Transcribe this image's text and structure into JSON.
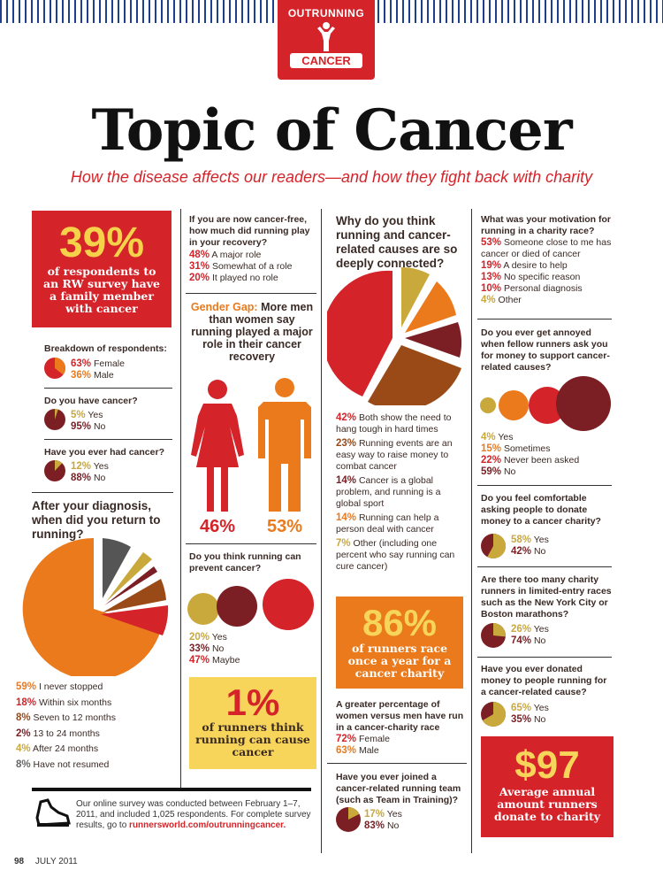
{
  "header": {
    "badge_top": "OUTRUNNING",
    "badge_bottom": "CANCER",
    "title": "Topic of Cancer",
    "subtitle": "How the disease affects our readers—and how they fight back with charity"
  },
  "colors": {
    "red": "#d42329",
    "orange": "#ea7a1c",
    "maroon": "#7b1f25",
    "gold": "#c9a83c",
    "brown": "#9a4a17",
    "grey": "#666666",
    "stripe": "#1e3f8e"
  },
  "col1": {
    "family_box": {
      "value": "39%",
      "text": "of respondents to an RW survey have a family member with cancer"
    },
    "breakdown": {
      "question": "Breakdown of respondents:",
      "rows": [
        {
          "pct": "63%",
          "label": "Female"
        },
        {
          "pct": "36%",
          "label": "Male"
        }
      ]
    },
    "have_cancer": {
      "question": "Do you have cancer?",
      "rows": [
        {
          "pct": "5%",
          "label": "Yes"
        },
        {
          "pct": "95%",
          "label": "No"
        }
      ]
    },
    "ever_had": {
      "question": "Have you ever had cancer?",
      "rows": [
        {
          "pct": "12%",
          "label": "Yes"
        },
        {
          "pct": "88%",
          "label": "No"
        }
      ]
    },
    "return": {
      "question": "After your diagnosis, when did you return to running?",
      "rows": [
        {
          "pct": "59%",
          "label": "I never stopped"
        },
        {
          "pct": "18%",
          "label": "Within six months"
        },
        {
          "pct": "8%",
          "label": "Seven to 12 months"
        },
        {
          "pct": "2%",
          "label": "13 to 24 months"
        },
        {
          "pct": "4%",
          "label": "After 24 months"
        },
        {
          "pct": "8%",
          "label": "Have not resumed"
        }
      ]
    }
  },
  "col2": {
    "role": {
      "question": "If you are now cancer-free, how much did running play in your recovery?",
      "rows": [
        {
          "pct": "48%",
          "label": "A major role"
        },
        {
          "pct": "31%",
          "label": "Somewhat of a role"
        },
        {
          "pct": "20%",
          "label": "It played no role"
        }
      ]
    },
    "gender_gap": {
      "label": "Gender Gap:",
      "text": "More men than women say running played a major role in their cancer recovery",
      "female": "46%",
      "male": "53%"
    },
    "prevent": {
      "question": "Do you think running can prevent cancer?",
      "rows": [
        {
          "pct": "20%",
          "label": "Yes"
        },
        {
          "pct": "33%",
          "label": "No"
        },
        {
          "pct": "47%",
          "label": "Maybe"
        }
      ]
    },
    "cause_box": {
      "value": "1%",
      "text": "of runners think running can cause cancer"
    }
  },
  "col3": {
    "connected": {
      "question": "Why do you think running and cancer-related causes are so deeply connected?",
      "rows": [
        {
          "pct": "42%",
          "label": "Both show the need to hang tough in hard times"
        },
        {
          "pct": "23%",
          "label": "Running events are an easy way to raise money to combat cancer"
        },
        {
          "pct": "14%",
          "label": "Cancer is a global problem, and running is a global sport"
        },
        {
          "pct": "14%",
          "label": "Running can help a person deal with cancer"
        },
        {
          "pct": "7%",
          "label": "Other (including one percent who say running can cure cancer)"
        }
      ]
    },
    "race_box": {
      "value": "86%",
      "text": "of runners race once a year for a cancer charity"
    },
    "gender_race": {
      "question": "A greater percentage of women versus men have run in a cancer-charity race",
      "rows": [
        {
          "pct": "72%",
          "label": "Female"
        },
        {
          "pct": "63%",
          "label": "Male"
        }
      ]
    },
    "team": {
      "question": "Have you ever joined a cancer-related running team (such as Team in Training)?",
      "rows": [
        {
          "pct": "17%",
          "label": "Yes"
        },
        {
          "pct": "83%",
          "label": "No"
        }
      ]
    }
  },
  "col4": {
    "motivation": {
      "question": "What was your motivation for running in a charity race?",
      "rows": [
        {
          "pct": "53%",
          "label": "Someone close to me has cancer or died of cancer"
        },
        {
          "pct": "19%",
          "label": "A desire to help"
        },
        {
          "pct": "13%",
          "label": "No specific reason"
        },
        {
          "pct": "10%",
          "label": "Personal diagnosis"
        },
        {
          "pct": "4%",
          "label": "Other"
        }
      ]
    },
    "annoyed": {
      "question": "Do you ever get annoyed when fellow runners ask you for money to support cancer-related causes?",
      "rows": [
        {
          "pct": "4%",
          "label": "Yes"
        },
        {
          "pct": "15%",
          "label": "Sometimes"
        },
        {
          "pct": "22%",
          "label": "Never been asked"
        },
        {
          "pct": "59%",
          "label": "No"
        }
      ]
    },
    "comfortable": {
      "question": "Do you feel comfortable asking people to donate money to a cancer charity?",
      "rows": [
        {
          "pct": "58%",
          "label": "Yes"
        },
        {
          "pct": "42%",
          "label": "No"
        }
      ]
    },
    "too_many": {
      "question": "Are there too many charity runners in limited-entry races such as the New York City or Boston marathons?",
      "rows": [
        {
          "pct": "26%",
          "label": "Yes"
        },
        {
          "pct": "74%",
          "label": "No"
        }
      ]
    },
    "donated": {
      "question": "Have you ever donated money to people running for a cancer-related cause?",
      "rows": [
        {
          "pct": "65%",
          "label": "Yes"
        },
        {
          "pct": "35%",
          "label": "No"
        }
      ]
    },
    "donate_box": {
      "value": "$97",
      "text": "Average annual amount runners donate to charity"
    }
  },
  "survey": {
    "text": "Our online survey was conducted between February 1–7, 2011, and included 1,025 respondents. For complete survey results, go to",
    "link": "runnersworld.com/outrunningcancer."
  },
  "footer": {
    "page": "98",
    "date": "JULY 2011"
  }
}
